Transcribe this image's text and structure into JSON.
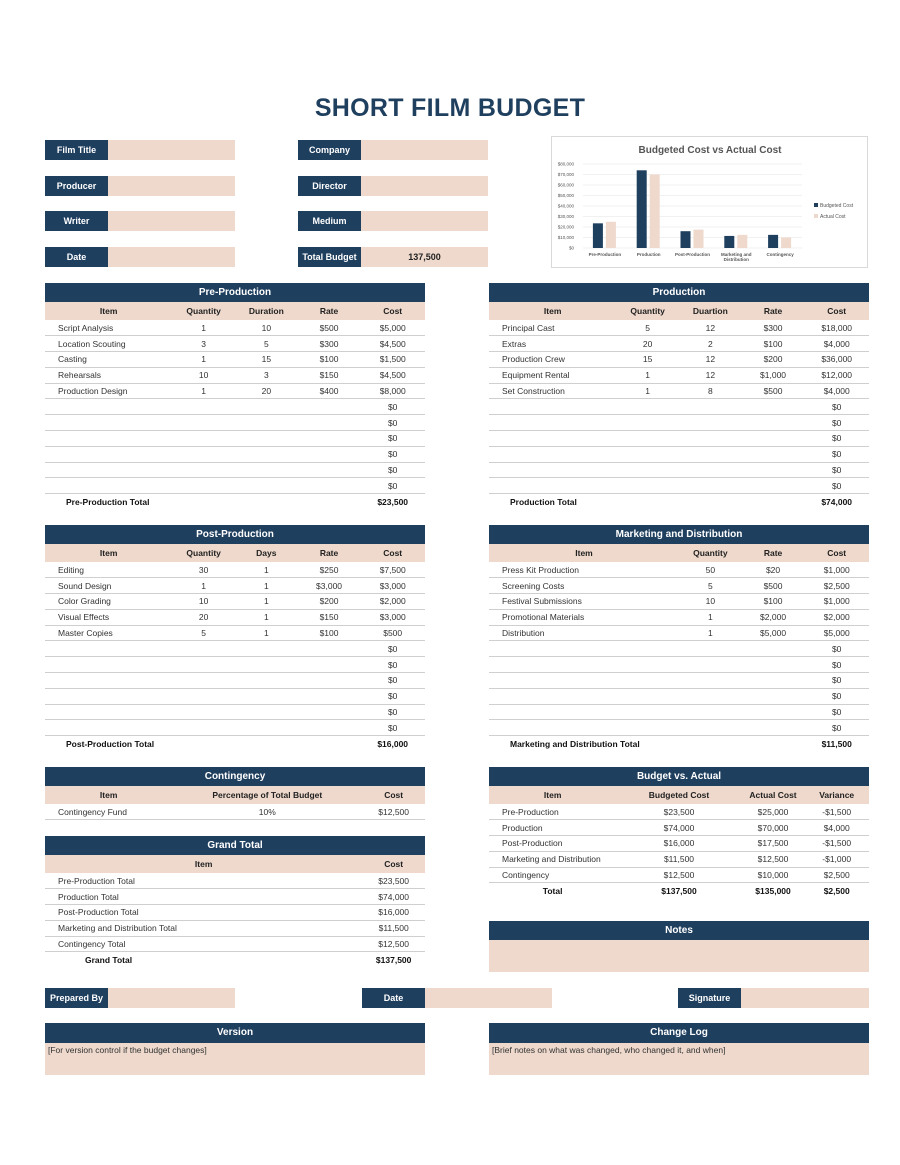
{
  "title": "SHORT FILM BUDGET",
  "fields": [
    {
      "label": "Film Title",
      "value": ""
    },
    {
      "label": "Company",
      "value": ""
    },
    {
      "label": "Producer",
      "value": ""
    },
    {
      "label": "Director",
      "value": ""
    },
    {
      "label": "Writer",
      "value": ""
    },
    {
      "label": "Medium",
      "value": ""
    },
    {
      "label": "Date",
      "value": ""
    },
    {
      "label": "Total Budget",
      "value": "137,500"
    }
  ],
  "chart_data": {
    "type": "bar",
    "title": "Budgeted Cost vs Actual Cost",
    "categories": [
      "Pre-Production",
      "Production",
      "Post-Production",
      "Marketing and Distribution",
      "Contingency"
    ],
    "series": [
      {
        "name": "Budgeted Cost",
        "values": [
          23500,
          74000,
          16000,
          11500,
          12500
        ],
        "color": "#1f3f5f"
      },
      {
        "name": "Actual Cost",
        "values": [
          25000,
          70000,
          17500,
          12500,
          10000
        ],
        "color": "#eed9cc"
      }
    ],
    "ylim": [
      0,
      80000
    ],
    "yticks": [
      "$0",
      "$10,000",
      "$20,000",
      "$30,000",
      "$40,000",
      "$50,000",
      "$60,000",
      "$70,000",
      "$80,000"
    ],
    "legend": "right",
    "grid": true
  },
  "pre": {
    "title": "Pre-Production",
    "cols": [
      "Item",
      "Quantity",
      "Duration",
      "Rate",
      "Cost"
    ],
    "rows": [
      [
        "Script Analysis",
        "1",
        "10",
        "$500",
        "$5,000"
      ],
      [
        "Location Scouting",
        "3",
        "5",
        "$300",
        "$4,500"
      ],
      [
        "Casting",
        "1",
        "15",
        "$100",
        "$1,500"
      ],
      [
        "Rehearsals",
        "10",
        "3",
        "$150",
        "$4,500"
      ],
      [
        "Production Design",
        "1",
        "20",
        "$400",
        "$8,000"
      ],
      [
        "",
        "",
        "",
        "",
        "$0"
      ],
      [
        "",
        "",
        "",
        "",
        "$0"
      ],
      [
        "",
        "",
        "",
        "",
        "$0"
      ],
      [
        "",
        "",
        "",
        "",
        "$0"
      ],
      [
        "",
        "",
        "",
        "",
        "$0"
      ],
      [
        "",
        "",
        "",
        "",
        "$0"
      ]
    ],
    "total": [
      "Pre-Production Total",
      "",
      "",
      "",
      "$23,500"
    ]
  },
  "prod": {
    "title": "Production",
    "cols": [
      "Item",
      "Quantity",
      "Duartion",
      "Rate",
      "Cost"
    ],
    "rows": [
      [
        "Principal Cast",
        "5",
        "12",
        "$300",
        "$18,000"
      ],
      [
        "Extras",
        "20",
        "2",
        "$100",
        "$4,000"
      ],
      [
        "Production Crew",
        "15",
        "12",
        "$200",
        "$36,000"
      ],
      [
        "Equipment Rental",
        "1",
        "12",
        "$1,000",
        "$12,000"
      ],
      [
        "Set Construction",
        "1",
        "8",
        "$500",
        "$4,000"
      ],
      [
        "",
        "",
        "",
        "",
        "$0"
      ],
      [
        "",
        "",
        "",
        "",
        "$0"
      ],
      [
        "",
        "",
        "",
        "",
        "$0"
      ],
      [
        "",
        "",
        "",
        "",
        "$0"
      ],
      [
        "",
        "",
        "",
        "",
        "$0"
      ],
      [
        "",
        "",
        "",
        "",
        "$0"
      ]
    ],
    "total": [
      "Production Total",
      "",
      "",
      "",
      "$74,000"
    ]
  },
  "post": {
    "title": "Post-Production",
    "cols": [
      "Item",
      "Quantity",
      "Days",
      "Rate",
      "Cost"
    ],
    "rows": [
      [
        "Editing",
        "30",
        "1",
        "$250",
        "$7,500"
      ],
      [
        "Sound Design",
        "1",
        "1",
        "$3,000",
        "$3,000"
      ],
      [
        "Color Grading",
        "10",
        "1",
        "$200",
        "$2,000"
      ],
      [
        "Visual Effects",
        "20",
        "1",
        "$150",
        "$3,000"
      ],
      [
        "Master Copies",
        "5",
        "1",
        "$100",
        "$500"
      ],
      [
        "",
        "",
        "",
        "",
        "$0"
      ],
      [
        "",
        "",
        "",
        "",
        "$0"
      ],
      [
        "",
        "",
        "",
        "",
        "$0"
      ],
      [
        "",
        "",
        "",
        "",
        "$0"
      ],
      [
        "",
        "",
        "",
        "",
        "$0"
      ],
      [
        "",
        "",
        "",
        "",
        "$0"
      ]
    ],
    "total": [
      "Post-Production Total",
      "",
      "",
      "",
      "$16,000"
    ]
  },
  "mkt": {
    "title": "Marketing and Distribution",
    "cols": [
      "Item",
      "Quantity",
      "Rate",
      "Cost"
    ],
    "rows": [
      [
        "Press Kit Production",
        "50",
        "$20",
        "$1,000"
      ],
      [
        "Screening Costs",
        "5",
        "$500",
        "$2,500"
      ],
      [
        "Festival Submissions",
        "10",
        "$100",
        "$1,000"
      ],
      [
        "Promotional Materials",
        "1",
        "$2,000",
        "$2,000"
      ],
      [
        "Distribution",
        "1",
        "$5,000",
        "$5,000"
      ],
      [
        "",
        "",
        "",
        "$0"
      ],
      [
        "",
        "",
        "",
        "$0"
      ],
      [
        "",
        "",
        "",
        "$0"
      ],
      [
        "",
        "",
        "",
        "$0"
      ],
      [
        "",
        "",
        "",
        "$0"
      ],
      [
        "",
        "",
        "",
        "$0"
      ]
    ],
    "total": [
      "Marketing and Distribution Total",
      "",
      "",
      "$11,500"
    ]
  },
  "cont": {
    "title": "Contingency",
    "cols": [
      "Item",
      "Percentage of Total Budget",
      "Cost"
    ],
    "rows": [
      [
        "Contingency Fund",
        "10%",
        "$12,500"
      ]
    ]
  },
  "grand": {
    "title": "Grand Total",
    "cols": [
      "Item",
      "Cost"
    ],
    "rows": [
      [
        "Pre-Production Total",
        "$23,500"
      ],
      [
        "Production Total",
        "$74,000"
      ],
      [
        "Post-Production Total",
        "$16,000"
      ],
      [
        "Marketing and Distribution Total",
        "$11,500"
      ],
      [
        "Contingency Total",
        "$12,500"
      ]
    ],
    "total": [
      "Grand Total",
      "$137,500"
    ]
  },
  "bva": {
    "title": "Budget vs. Actual",
    "cols": [
      "Item",
      "Budgeted Cost",
      "Actual Cost",
      "Variance"
    ],
    "rows": [
      [
        "Pre-Production",
        "$23,500",
        "$25,000",
        "-$1,500"
      ],
      [
        "Production",
        "$74,000",
        "$70,000",
        "$4,000"
      ],
      [
        "Post-Production",
        "$16,000",
        "$17,500",
        "-$1,500"
      ],
      [
        "Marketing and Distribution",
        "$11,500",
        "$12,500",
        "-$1,000"
      ],
      [
        "Contingency",
        "$12,500",
        "$10,000",
        "$2,500"
      ]
    ],
    "total": [
      "Total",
      "$137,500",
      "$135,000",
      "$2,500"
    ]
  },
  "notes": {
    "title": "Notes",
    "body": ""
  },
  "signoff": {
    "prepared_by": "Prepared By",
    "date": "Date",
    "signature": "Signature"
  },
  "version": {
    "title": "Version",
    "body": "[For version control if the budget changes]"
  },
  "changelog": {
    "title": "Change Log",
    "body": "[Brief notes on what was changed, who changed it, and when]"
  }
}
